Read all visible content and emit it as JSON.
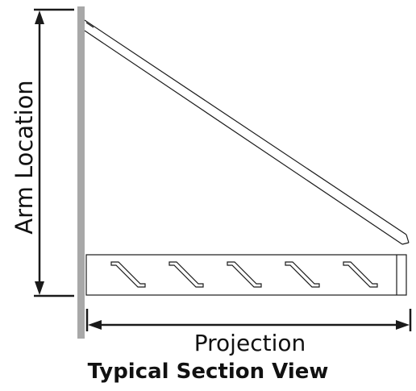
{
  "labels": {
    "arm_location": "Arm Location",
    "projection": "Projection",
    "title": "Typical Section View"
  },
  "colors": {
    "wall": "#a8a8a8",
    "line": "#1a1a1a"
  },
  "louver_count": 5
}
